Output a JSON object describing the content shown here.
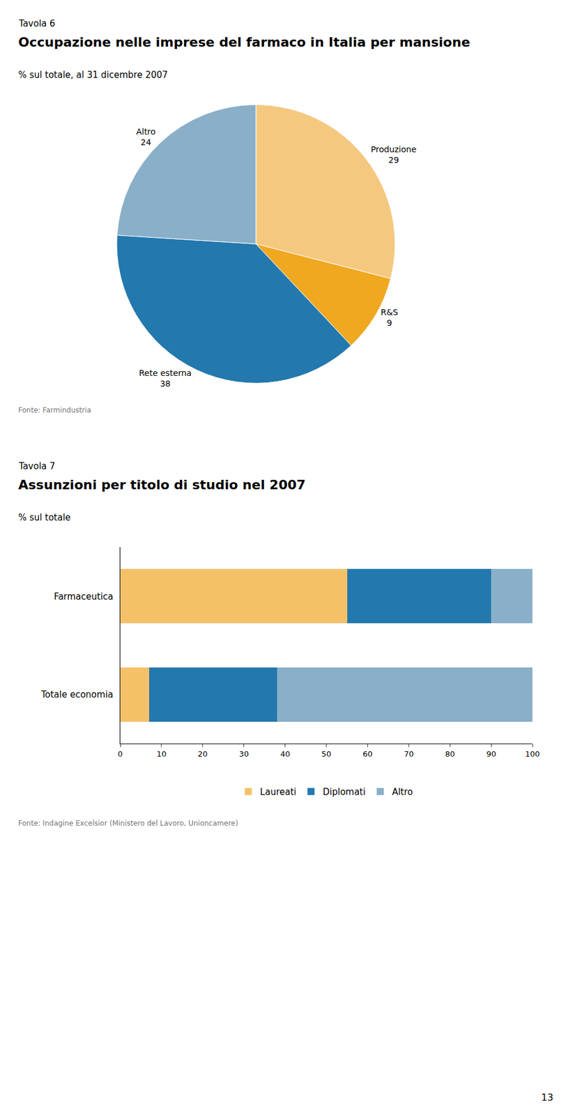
{
  "chart_data": [
    {
      "type": "pie",
      "title": "Occupazione nelle imprese del farmaco in Italia per mansione",
      "subtitle": "% sul totale, al 31 dicembre 2007",
      "categories": [
        "Produzione",
        "R&S",
        "Rete esterna",
        "Altro"
      ],
      "values": [
        29,
        9,
        38,
        24
      ],
      "colors": [
        "#F5C880",
        "#F0A820",
        "#2378AE",
        "#8AAFC8"
      ],
      "data_labels": true,
      "annotations": [
        "Tavola 6",
        "Fonte: Farmindustria"
      ]
    },
    {
      "type": "bar",
      "orientation": "horizontal",
      "stacked": true,
      "title": "Assunzioni per titolo di studio nel 2007",
      "subtitle": "% sul totale",
      "categories": [
        "Farmaceutica",
        "Totale economia"
      ],
      "series": [
        {
          "name": "Laureati",
          "color": "#F5C168",
          "values": [
            55,
            7
          ]
        },
        {
          "name": "Diplomati",
          "color": "#2378AE",
          "values": [
            35,
            31
          ]
        },
        {
          "name": "Altro",
          "color": "#8AAFC8",
          "values": [
            10,
            62
          ]
        }
      ],
      "xlim": [
        0,
        100
      ],
      "xticks": [
        0,
        10,
        20,
        30,
        40,
        50,
        60,
        70,
        80,
        90,
        100
      ],
      "grid": false,
      "legend": "bottom",
      "annotations": [
        "Tavola 7",
        "Fonte: Indagine Excelsior (Ministero del Lavoro, Unioncamere)",
        "13"
      ]
    }
  ]
}
